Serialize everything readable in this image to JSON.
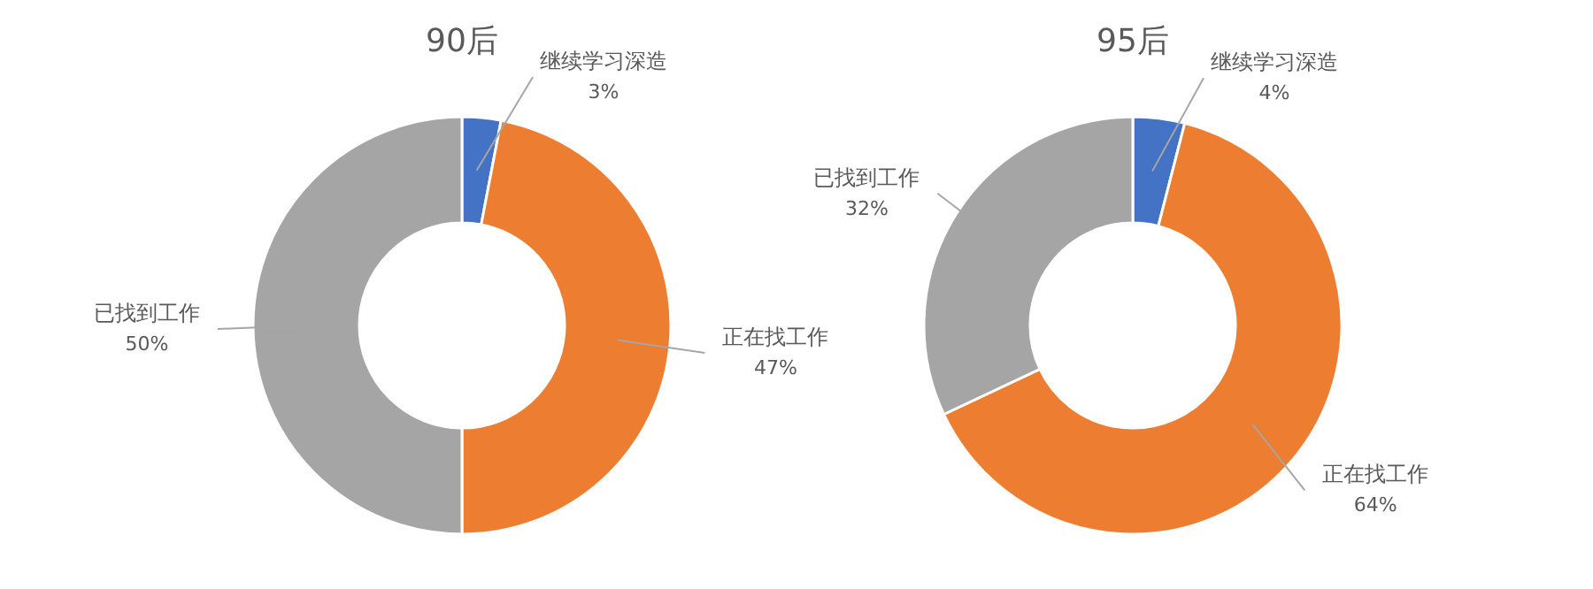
{
  "chart_data": [
    {
      "type": "donut",
      "title": "90后",
      "categories": [
        "继续学习深造",
        "正在找工作",
        "已找到工作"
      ],
      "values": [
        3,
        47,
        50
      ],
      "value_labels": [
        "3%",
        "47%",
        "50%"
      ],
      "colors": [
        "#4472c4",
        "#ed7d31",
        "#a5a5a5"
      ]
    },
    {
      "type": "donut",
      "title": "95后",
      "categories": [
        "继续学习深造",
        "正在找工作",
        "已找到工作"
      ],
      "values": [
        4,
        64,
        32
      ],
      "value_labels": [
        "4%",
        "64%",
        "32%"
      ],
      "colors": [
        "#4472c4",
        "#ed7d31",
        "#a5a5a5"
      ]
    }
  ]
}
